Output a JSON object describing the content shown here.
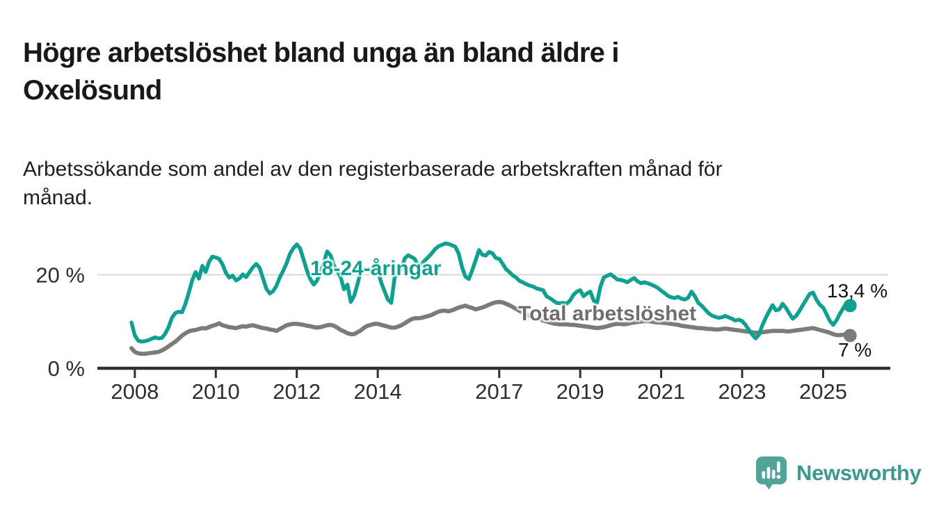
{
  "title": {
    "text": "Högre arbetslöshet bland unga än bland äldre i Oxelösund",
    "lines": [
      "Högre arbetslöshet bland unga än bland äldre i",
      "Oxelösund"
    ]
  },
  "subtitle": {
    "text": "Arbetssökande som andel av den registerbaserade arbetskraften månad för månad.",
    "lines": [
      "Arbetssökande som andel av den registerbaserade arbetskraften månad för",
      "månad."
    ]
  },
  "chart_data": {
    "type": "line",
    "unit": "%",
    "frequency": "monthly",
    "x_start": "2007-12",
    "x_end": "2025-09",
    "x_ticks": [
      2008,
      2010,
      2012,
      2014,
      2017,
      2019,
      2021,
      2023,
      2025
    ],
    "y_ticks": [
      {
        "value": 20,
        "label": "20 %"
      },
      {
        "value": 0,
        "label": "0 %"
      }
    ],
    "ylim": [
      0,
      28
    ],
    "grid": "horizontal-line-at-20-only",
    "legend": "inline-labels-on-chart",
    "series": [
      {
        "name": "18-24-åringar",
        "color": "#10a090",
        "end_label": "13,4 %",
        "last_value": 13.4,
        "values": [
          9.8,
          7.0,
          5.9,
          5.7,
          5.8,
          6.0,
          6.3,
          6.6,
          6.4,
          6.5,
          7.4,
          8.8,
          10.8,
          11.8,
          12.1,
          12.0,
          13.8,
          16.2,
          18.8,
          20.6,
          19.2,
          21.9,
          20.6,
          22.8,
          23.9,
          23.7,
          23.4,
          22.2,
          20.4,
          19.4,
          19.8,
          18.8,
          19.2,
          20.1,
          19.5,
          20.6,
          21.6,
          22.3,
          21.5,
          19.2,
          17.0,
          16.0,
          16.5,
          17.7,
          19.5,
          20.9,
          22.5,
          24.5,
          25.7,
          26.5,
          25.6,
          23.3,
          20.9,
          19.1,
          17.9,
          18.8,
          20.5,
          22.6,
          25.0,
          24.2,
          22.0,
          20.8,
          19.5,
          16.9,
          17.9,
          14.2,
          15.5,
          18.0,
          20.9,
          21.2,
          21.3,
          21.1,
          20.9,
          20.8,
          18.4,
          16.5,
          14.7,
          14.0,
          19.4,
          20.5,
          21.3,
          23.5,
          24.2,
          23.8,
          23.4,
          21.6,
          22.3,
          23.1,
          23.8,
          24.6,
          25.5,
          26.1,
          26.4,
          26.7,
          26.6,
          26.3,
          26.0,
          24.5,
          21.6,
          19.6,
          19.1,
          21.0,
          23.1,
          25.3,
          24.3,
          24.1,
          24.9,
          24.6,
          23.6,
          23.4,
          22.4,
          21.2,
          20.6,
          19.9,
          19.4,
          18.7,
          18.4,
          18.0,
          17.7,
          17.5,
          17.1,
          16.9,
          16.7,
          15.4,
          15.0,
          14.5,
          14.0,
          13.9,
          14.0,
          13.8,
          14.5,
          15.7,
          16.4,
          16.7,
          15.4,
          16.0,
          16.4,
          14.5,
          14.0,
          17.5,
          19.4,
          19.8,
          20.1,
          19.6,
          19.0,
          18.9,
          18.7,
          18.4,
          18.9,
          19.3,
          18.6,
          18.2,
          18.4,
          18.2,
          17.9,
          17.6,
          17.2,
          16.6,
          16.1,
          15.5,
          15.2,
          15.0,
          15.3,
          14.9,
          14.7,
          15.1,
          16.4,
          15.4,
          14.0,
          13.4,
          12.6,
          11.8,
          11.3,
          11.0,
          10.8,
          10.9,
          11.2,
          10.9,
          10.6,
          10.2,
          10.4,
          10.1,
          9.3,
          8.2,
          7.2,
          6.4,
          7.2,
          9.2,
          10.8,
          12.2,
          13.5,
          12.4,
          12.6,
          13.8,
          12.9,
          11.7,
          10.6,
          11.2,
          12.3,
          13.5,
          14.7,
          15.9,
          16.2,
          14.7,
          13.6,
          13.0,
          11.6,
          10.1,
          9.3,
          10.3,
          11.7,
          12.9,
          14.1,
          13.4
        ]
      },
      {
        "name": "Total arbetslöshet",
        "color": "#7b7b7b",
        "end_label": "7 %",
        "last_value": 7.0,
        "values": [
          4.3,
          3.5,
          3.2,
          3.1,
          3.1,
          3.2,
          3.3,
          3.4,
          3.5,
          3.8,
          4.2,
          4.7,
          5.2,
          5.7,
          6.3,
          7.0,
          7.5,
          7.9,
          8.1,
          8.2,
          8.4,
          8.6,
          8.5,
          8.8,
          9.1,
          9.3,
          9.6,
          9.2,
          9.0,
          8.8,
          8.7,
          8.6,
          8.8,
          9.0,
          8.9,
          9.1,
          9.2,
          9.0,
          8.8,
          8.6,
          8.5,
          8.3,
          8.2,
          8.0,
          8.4,
          8.8,
          9.2,
          9.4,
          9.5,
          9.5,
          9.4,
          9.3,
          9.1,
          9.0,
          8.8,
          8.7,
          8.8,
          9.0,
          9.2,
          9.3,
          9.1,
          8.7,
          8.2,
          7.9,
          7.5,
          7.3,
          7.3,
          7.7,
          8.1,
          8.7,
          9.1,
          9.3,
          9.5,
          9.5,
          9.3,
          9.1,
          8.9,
          8.7,
          8.7,
          8.9,
          9.2,
          9.6,
          10.1,
          10.5,
          10.7,
          10.7,
          10.8,
          11.0,
          11.2,
          11.4,
          11.8,
          12.1,
          12.3,
          12.3,
          12.2,
          12.4,
          12.7,
          13.0,
          13.2,
          13.4,
          13.1,
          12.9,
          12.6,
          12.8,
          13.0,
          13.3,
          13.6,
          13.9,
          14.1,
          14.2,
          14.1,
          13.8,
          13.5,
          13.1,
          12.7,
          12.3,
          11.9,
          11.5,
          11.2,
          10.9,
          10.7,
          10.5,
          10.2,
          10.0,
          9.8,
          9.6,
          9.5,
          9.4,
          9.4,
          9.4,
          9.3,
          9.3,
          9.2,
          9.1,
          9.0,
          8.9,
          8.8,
          8.7,
          8.6,
          8.7,
          8.8,
          9.0,
          9.2,
          9.4,
          9.5,
          9.5,
          9.4,
          9.5,
          9.7,
          9.8,
          9.9,
          10.0,
          10.1,
          10.1,
          10.0,
          9.9,
          9.8,
          9.8,
          9.7,
          9.6,
          9.5,
          9.4,
          9.3,
          9.1,
          9.0,
          8.9,
          8.8,
          8.7,
          8.6,
          8.6,
          8.5,
          8.4,
          8.4,
          8.3,
          8.3,
          8.4,
          8.5,
          8.4,
          8.3,
          8.2,
          8.1,
          8.0,
          7.9,
          7.8,
          7.7,
          7.6,
          7.6,
          7.7,
          7.8,
          7.9,
          8.0,
          8.0,
          8.0,
          8.0,
          7.9,
          7.9,
          8.0,
          8.1,
          8.2,
          8.3,
          8.4,
          8.5,
          8.6,
          8.4,
          8.2,
          8.0,
          7.8,
          7.6,
          7.3,
          7.1,
          7.1,
          7.2,
          7.3,
          7.0
        ]
      }
    ]
  },
  "branding": {
    "logo_text": "Newsworthy",
    "logo_color": "#3f988e",
    "logo_bubble_color": "#4fa399",
    "logo_icon": "bar-chart-speech-bubble-icon"
  }
}
